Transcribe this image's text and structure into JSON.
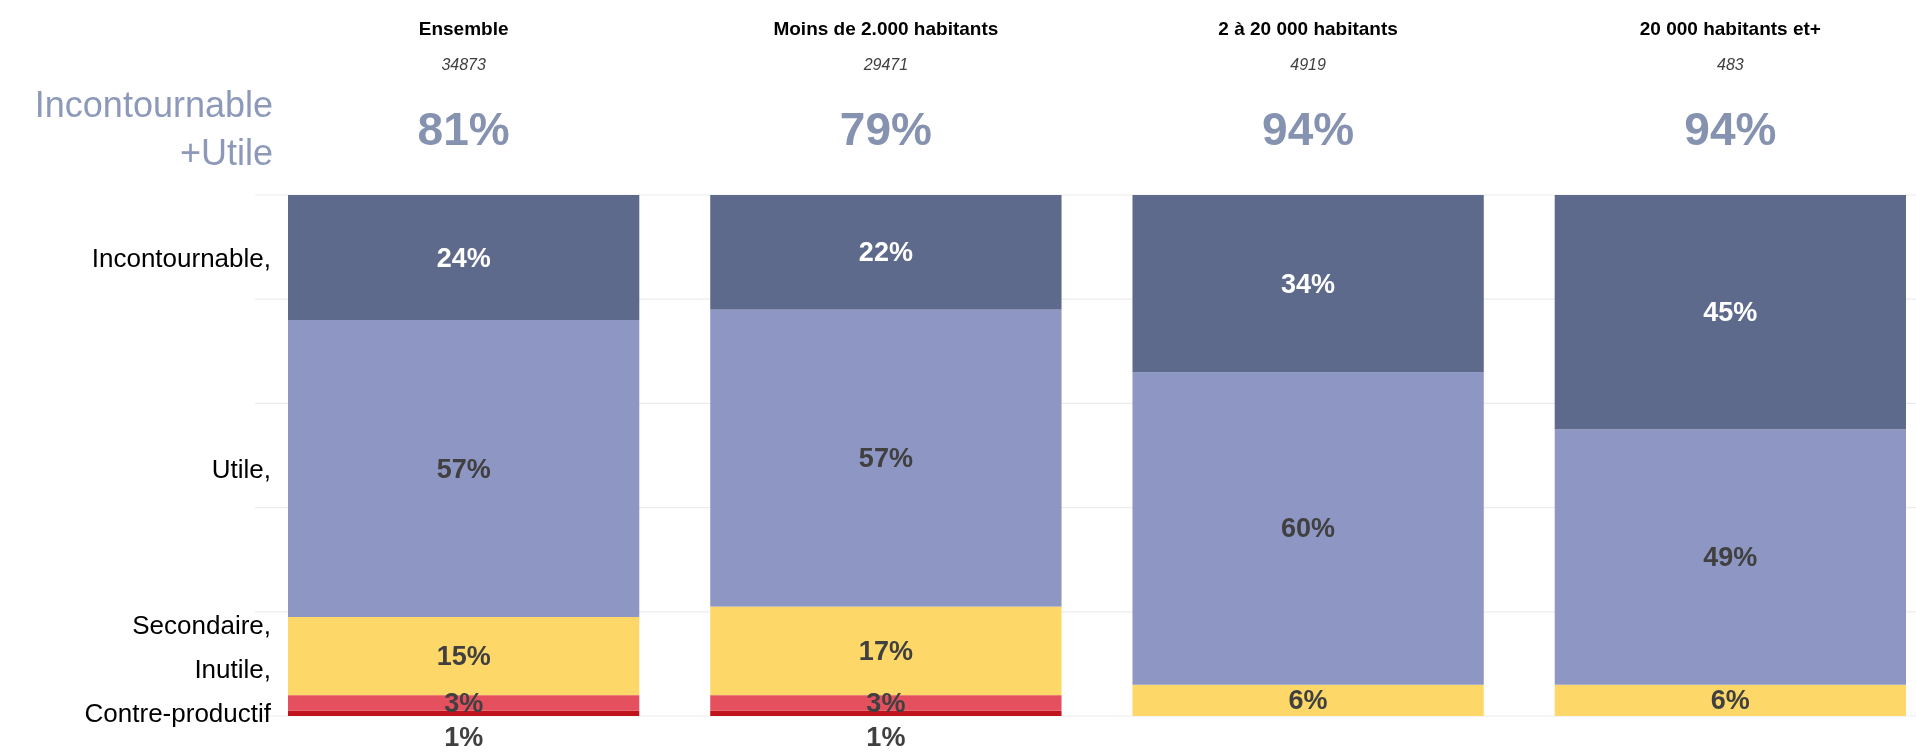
{
  "chart_data": {
    "type": "bar",
    "stacked": true,
    "categories": [
      "Ensemble",
      "Moins de 2.000 habitants",
      "2 à 20 000 habitants",
      "20 000 habitants et+"
    ],
    "series": [
      {
        "name": "Contre-productif",
        "color": "#c0141c",
        "values": [
          1,
          1,
          null,
          null
        ],
        "value_labels": [
          "1%",
          "1%",
          null,
          null
        ]
      },
      {
        "name": "Inutile,",
        "color": "#e5505f",
        "values": [
          3,
          3,
          null,
          null
        ],
        "value_labels": [
          "3%",
          "3%",
          null,
          null
        ]
      },
      {
        "name": "Secondaire,",
        "color": "#fdd868",
        "values": [
          15,
          17,
          6,
          6
        ],
        "value_labels": [
          "15%",
          "17%",
          "6%",
          "6%"
        ]
      },
      {
        "name": "Utile,",
        "color": "#8e96c3",
        "values": [
          57,
          57,
          60,
          49
        ],
        "value_labels": [
          "57%",
          "57%",
          "60%",
          "49%"
        ]
      },
      {
        "name": "Incontournable,",
        "color": "#5d6a8b",
        "values": [
          24,
          22,
          34,
          45
        ],
        "value_labels": [
          "24%",
          "22%",
          "34%",
          "45%"
        ]
      }
    ],
    "grid": "y",
    "tick_labels": "x",
    "legend": "left",
    "annotations": [
      "Incontournable\n+Utile",
      "34873",
      "81%",
      "29471",
      "79%",
      "4919",
      "94%",
      "483",
      "94%"
    ]
  }
}
